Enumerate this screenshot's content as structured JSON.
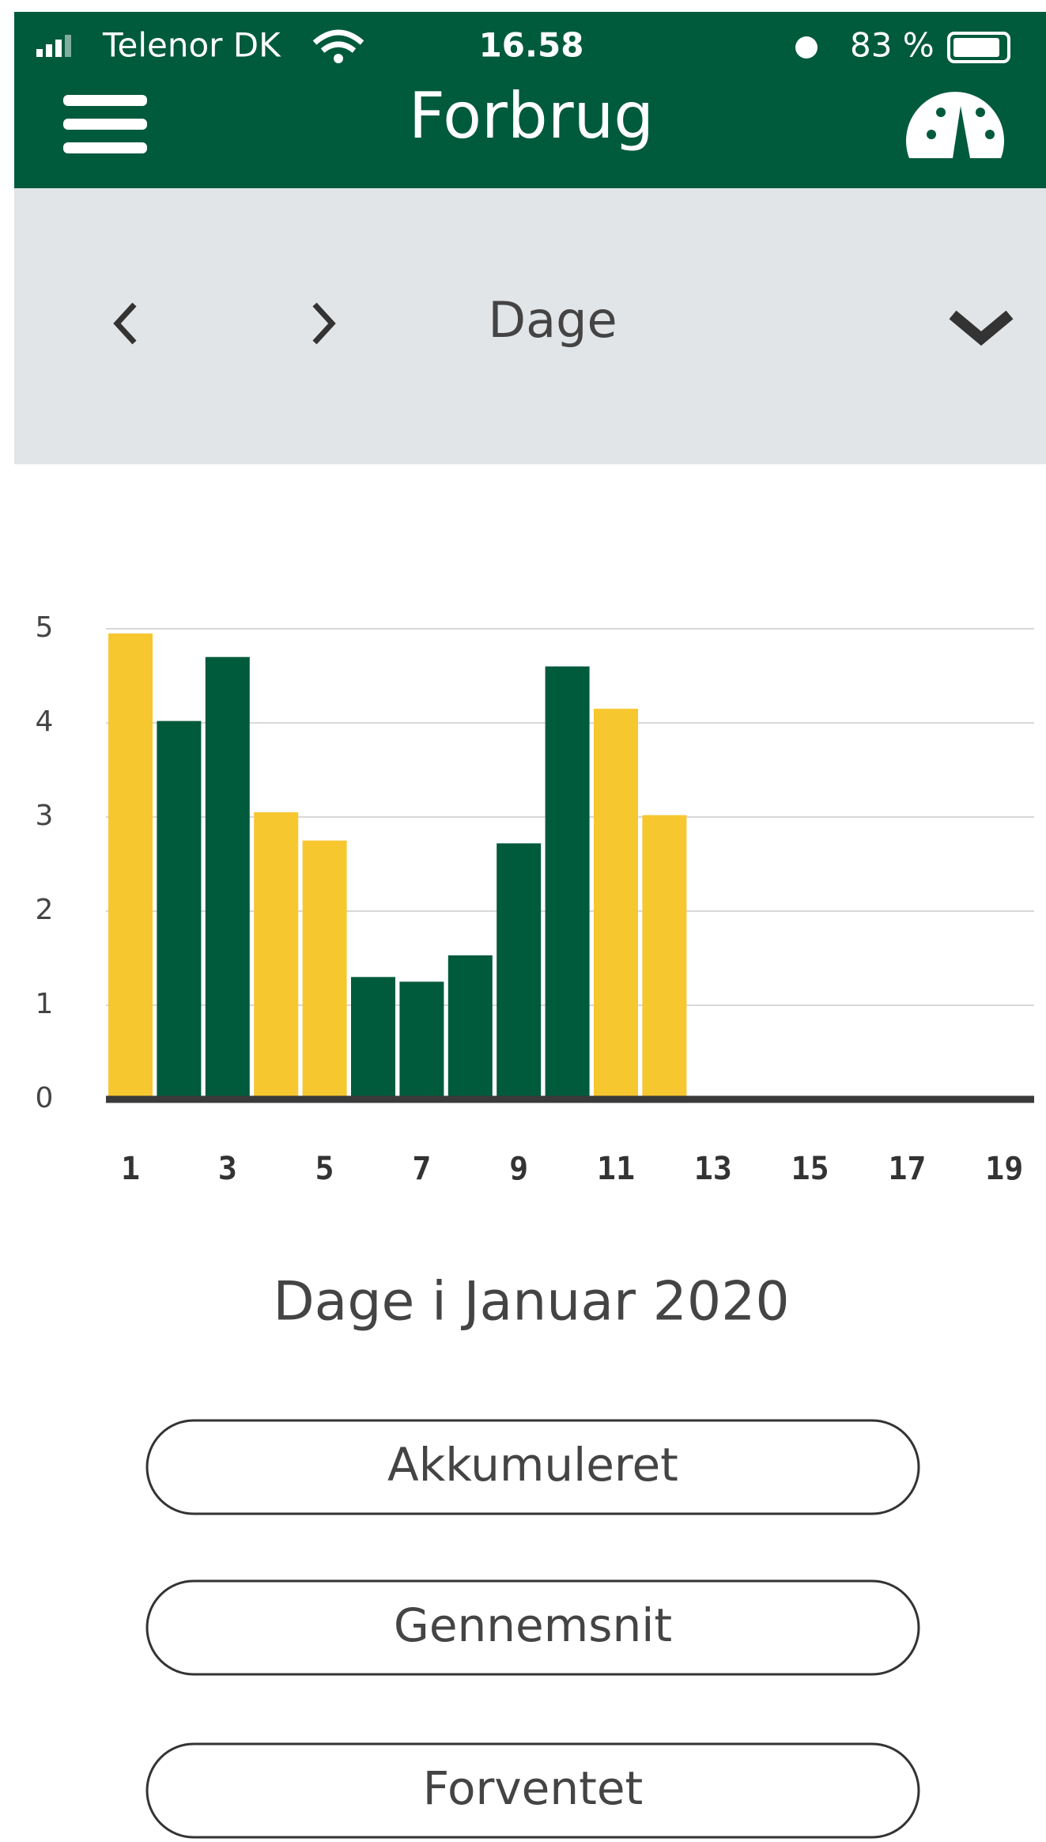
{
  "status_bar": {
    "carrier": "Telenor DK",
    "time": "16.58",
    "battery": "83 %"
  },
  "header": {
    "title": "Forbrug"
  },
  "nav": {
    "period": "Dage"
  },
  "chart_data": {
    "type": "bar",
    "categories": [
      1,
      null,
      3,
      null,
      5,
      null,
      7,
      null,
      9,
      null,
      11,
      null,
      13,
      null,
      15,
      null,
      17,
      null,
      19
    ],
    "values": [
      4.95,
      4.02,
      4.7,
      3.05,
      2.75,
      1.3,
      1.25,
      1.53,
      2.72,
      4.6,
      4.15,
      3.02,
      null,
      null,
      null,
      null,
      null,
      null,
      null
    ],
    "colors": [
      "#f7c730",
      "#005a3c",
      "#005a3c",
      "#f7c730",
      "#f7c730",
      "#005a3c",
      "#005a3c",
      "#005a3c",
      "#005a3c",
      "#005a3c",
      "#f7c730",
      "#f7c730",
      null,
      null,
      null,
      null,
      null,
      null,
      null
    ],
    "ylim": [
      0,
      5
    ],
    "yticks": [
      0,
      1,
      2,
      3,
      4,
      5
    ],
    "grid": true,
    "xlabel": "Dage i Januar 2020"
  },
  "buttons": [
    "Akkumuleret",
    "Gennemsnit",
    "Forventet"
  ]
}
